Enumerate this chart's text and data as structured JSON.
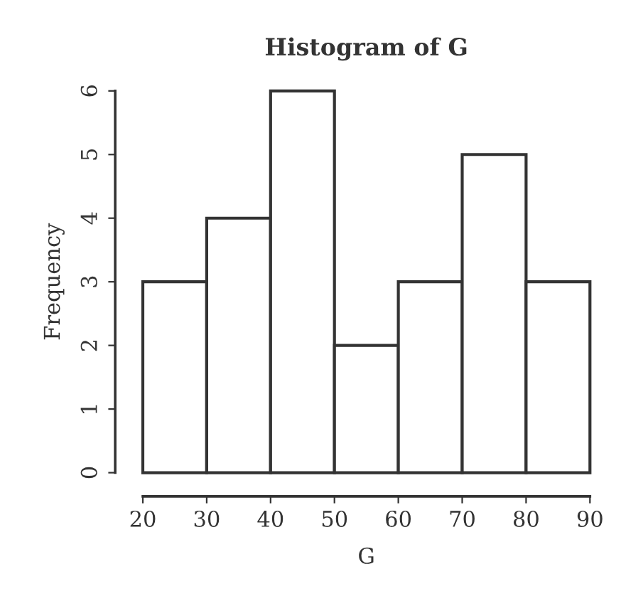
{
  "chart_data": {
    "type": "histogram",
    "title": "Histogram of G",
    "xlabel": "G",
    "ylabel": "Frequency",
    "bins": [
      20,
      30,
      40,
      50,
      60,
      70,
      80,
      90
    ],
    "values": [
      3,
      4,
      6,
      2,
      3,
      5,
      3
    ],
    "color": "#ffffff",
    "xlim": [
      20,
      90
    ],
    "ylim": [
      0,
      6
    ],
    "xticks": [
      20,
      30,
      40,
      50,
      60,
      70,
      80,
      90
    ],
    "yticks": [
      0,
      1,
      2,
      3,
      4,
      5,
      6
    ],
    "grid": false
  }
}
